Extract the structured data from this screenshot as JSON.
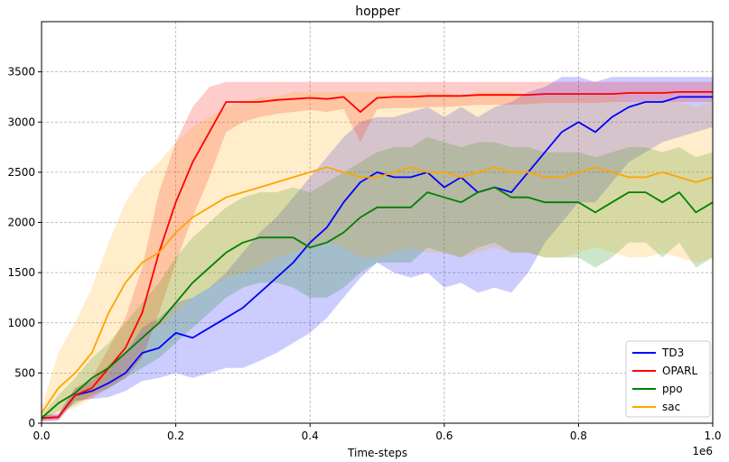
{
  "chart_data": {
    "type": "line",
    "title": "hopper",
    "xlabel": "Time-steps",
    "ylabel": "",
    "x_offset_label": "1e6",
    "xlim": [
      0,
      1.0
    ],
    "ylim": [
      0,
      4000
    ],
    "x_ticks": [
      0.0,
      0.2,
      0.4,
      0.6,
      0.8,
      1.0
    ],
    "x_tick_labels": [
      "0.0",
      "0.2",
      "0.4",
      "0.6",
      "0.8",
      "1.0"
    ],
    "y_ticks": [
      0,
      500,
      1000,
      1500,
      2000,
      2500,
      3000,
      3500
    ],
    "y_tick_labels": [
      "0",
      "500",
      "1000",
      "1500",
      "2000",
      "2500",
      "3000",
      "3500"
    ],
    "grid": true,
    "legend_position": "lower-right",
    "series": [
      {
        "name": "TD3",
        "color": "#0000ff",
        "x": [
          0,
          0.025,
          0.05,
          0.075,
          0.1,
          0.125,
          0.15,
          0.175,
          0.2,
          0.225,
          0.25,
          0.275,
          0.3,
          0.325,
          0.35,
          0.375,
          0.4,
          0.425,
          0.45,
          0.475,
          0.5,
          0.525,
          0.55,
          0.575,
          0.6,
          0.625,
          0.65,
          0.675,
          0.7,
          0.725,
          0.75,
          0.775,
          0.8,
          0.825,
          0.85,
          0.875,
          0.9,
          0.925,
          0.95,
          0.975,
          1.0
        ],
        "values": [
          50,
          60,
          280,
          320,
          400,
          500,
          700,
          750,
          900,
          850,
          950,
          1050,
          1150,
          1300,
          1450,
          1600,
          1800,
          1950,
          2200,
          2400,
          2500,
          2450,
          2450,
          2500,
          2350,
          2450,
          2300,
          2350,
          2300,
          2500,
          2700,
          2900,
          3000,
          2900,
          3050,
          3150,
          3200,
          3200,
          3250,
          3250,
          3250
        ],
        "band_upper": [
          80,
          90,
          350,
          420,
          580,
          700,
          950,
          1050,
          1200,
          1250,
          1350,
          1500,
          1700,
          1900,
          2050,
          2250,
          2450,
          2650,
          2850,
          3000,
          3050,
          3050,
          3100,
          3150,
          3050,
          3150,
          3050,
          3150,
          3200,
          3300,
          3350,
          3450,
          3450,
          3400,
          3450,
          3450,
          3450,
          3450,
          3450,
          3450,
          3450
        ],
        "band_lower": [
          20,
          30,
          220,
          240,
          260,
          320,
          420,
          450,
          500,
          450,
          500,
          550,
          550,
          620,
          700,
          800,
          900,
          1050,
          1250,
          1450,
          1600,
          1500,
          1450,
          1500,
          1350,
          1400,
          1300,
          1350,
          1300,
          1500,
          1800,
          2000,
          2200,
          2200,
          2400,
          2600,
          2700,
          2800,
          2850,
          2900,
          2950
        ]
      },
      {
        "name": "OPARL",
        "color": "#ff0000",
        "x": [
          0,
          0.025,
          0.05,
          0.075,
          0.1,
          0.125,
          0.15,
          0.175,
          0.2,
          0.225,
          0.25,
          0.275,
          0.3,
          0.325,
          0.35,
          0.375,
          0.4,
          0.425,
          0.45,
          0.475,
          0.5,
          0.525,
          0.55,
          0.575,
          0.6,
          0.625,
          0.65,
          0.675,
          0.7,
          0.725,
          0.75,
          0.775,
          0.8,
          0.825,
          0.85,
          0.875,
          0.9,
          0.925,
          0.95,
          0.975,
          1.0
        ],
        "values": [
          50,
          60,
          280,
          350,
          550,
          750,
          1100,
          1700,
          2200,
          2600,
          2900,
          3200,
          3200,
          3200,
          3220,
          3230,
          3240,
          3230,
          3250,
          3100,
          3240,
          3250,
          3250,
          3260,
          3260,
          3260,
          3270,
          3270,
          3270,
          3270,
          3280,
          3280,
          3280,
          3280,
          3280,
          3290,
          3290,
          3290,
          3300,
          3300,
          3300
        ],
        "band_upper": [
          80,
          90,
          350,
          450,
          750,
          1050,
          1550,
          2300,
          2800,
          3150,
          3350,
          3400,
          3400,
          3400,
          3400,
          3400,
          3400,
          3400,
          3400,
          3400,
          3400,
          3400,
          3400,
          3400,
          3400,
          3400,
          3400,
          3400,
          3400,
          3400,
          3400,
          3400,
          3400,
          3400,
          3400,
          3400,
          3400,
          3400,
          3400,
          3400,
          3400
        ],
        "band_lower": [
          20,
          30,
          220,
          250,
          350,
          450,
          650,
          1100,
          1600,
          2050,
          2450,
          2900,
          3000,
          3050,
          3080,
          3100,
          3120,
          3100,
          3130,
          2800,
          3130,
          3140,
          3140,
          3150,
          3150,
          3160,
          3170,
          3170,
          3170,
          3180,
          3190,
          3190,
          3190,
          3190,
          3200,
          3200,
          3200,
          3200,
          3200,
          3200,
          3200
        ]
      },
      {
        "name": "ppo",
        "color": "#008000",
        "x": [
          0,
          0.025,
          0.05,
          0.075,
          0.1,
          0.125,
          0.15,
          0.175,
          0.2,
          0.225,
          0.25,
          0.275,
          0.3,
          0.325,
          0.35,
          0.375,
          0.4,
          0.425,
          0.45,
          0.475,
          0.5,
          0.525,
          0.55,
          0.575,
          0.6,
          0.625,
          0.65,
          0.675,
          0.7,
          0.725,
          0.75,
          0.775,
          0.8,
          0.825,
          0.85,
          0.875,
          0.9,
          0.925,
          0.95,
          0.975,
          1.0
        ],
        "values": [
          50,
          200,
          300,
          450,
          550,
          700,
          850,
          1000,
          1200,
          1400,
          1550,
          1700,
          1800,
          1850,
          1850,
          1850,
          1750,
          1800,
          1900,
          2050,
          2150,
          2150,
          2150,
          2300,
          2250,
          2200,
          2300,
          2350,
          2250,
          2250,
          2200,
          2200,
          2200,
          2100,
          2200,
          2300,
          2300,
          2200,
          2300,
          2100,
          2200
        ],
        "band_upper": [
          80,
          280,
          450,
          650,
          800,
          1000,
          1200,
          1400,
          1650,
          1850,
          2000,
          2150,
          2250,
          2300,
          2300,
          2350,
          2300,
          2400,
          2500,
          2600,
          2700,
          2750,
          2750,
          2850,
          2800,
          2750,
          2800,
          2800,
          2750,
          2750,
          2700,
          2700,
          2700,
          2650,
          2700,
          2750,
          2750,
          2700,
          2750,
          2650,
          2700
        ],
        "band_lower": [
          20,
          120,
          180,
          280,
          350,
          450,
          550,
          650,
          800,
          950,
          1100,
          1250,
          1350,
          1400,
          1400,
          1350,
          1250,
          1250,
          1350,
          1500,
          1600,
          1600,
          1600,
          1750,
          1700,
          1650,
          1750,
          1800,
          1700,
          1700,
          1650,
          1650,
          1650,
          1550,
          1650,
          1800,
          1800,
          1650,
          1800,
          1550,
          1650
        ]
      },
      {
        "name": "sac",
        "color": "#ffa500",
        "x": [
          0,
          0.025,
          0.05,
          0.075,
          0.1,
          0.125,
          0.15,
          0.175,
          0.2,
          0.225,
          0.25,
          0.275,
          0.3,
          0.325,
          0.35,
          0.375,
          0.4,
          0.425,
          0.45,
          0.475,
          0.5,
          0.525,
          0.55,
          0.575,
          0.6,
          0.625,
          0.65,
          0.675,
          0.7,
          0.725,
          0.75,
          0.775,
          0.8,
          0.825,
          0.85,
          0.875,
          0.9,
          0.925,
          0.95,
          0.975,
          1.0
        ],
        "values": [
          100,
          350,
          500,
          700,
          1100,
          1400,
          1600,
          1700,
          1900,
          2050,
          2150,
          2250,
          2300,
          2350,
          2400,
          2450,
          2500,
          2550,
          2500,
          2450,
          2450,
          2500,
          2550,
          2500,
          2500,
          2450,
          2500,
          2550,
          2500,
          2500,
          2450,
          2450,
          2500,
          2550,
          2500,
          2450,
          2450,
          2500,
          2450,
          2400,
          2450
        ],
        "band_upper": [
          150,
          700,
          1000,
          1350,
          1800,
          2200,
          2450,
          2600,
          2800,
          2950,
          3050,
          3150,
          3200,
          3250,
          3250,
          3300,
          3300,
          3300,
          3300,
          3300,
          3300,
          3300,
          3300,
          3300,
          3300,
          3250,
          3300,
          3300,
          3300,
          3250,
          3250,
          3250,
          3250,
          3250,
          3250,
          3200,
          3200,
          3200,
          3200,
          3150,
          3200
        ],
        "band_lower": [
          50,
          100,
          150,
          250,
          500,
          750,
          900,
          950,
          1100,
          1250,
          1350,
          1450,
          1500,
          1550,
          1650,
          1700,
          1750,
          1800,
          1750,
          1650,
          1650,
          1700,
          1750,
          1700,
          1700,
          1650,
          1700,
          1750,
          1700,
          1700,
          1650,
          1650,
          1700,
          1750,
          1700,
          1650,
          1650,
          1700,
          1650,
          1600,
          1650
        ]
      }
    ]
  }
}
